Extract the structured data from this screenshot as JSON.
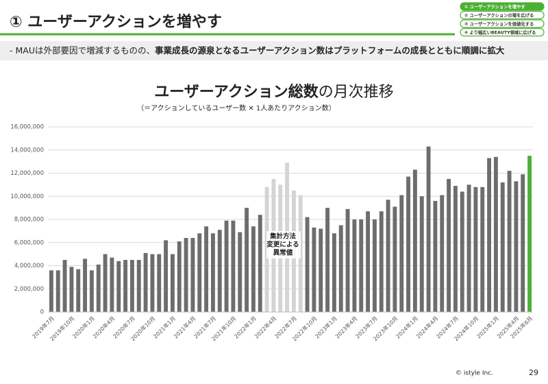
{
  "header": {
    "title": "① ユーザーアクションを増やす",
    "nav": [
      "① ユーザーアクションを増やす",
      "② ユーザーアクションの場を広げる",
      "③ ユーザーアクションを価値化する",
      "④ より幅広いBEAUTY領域に広げる"
    ]
  },
  "subheading": {
    "prefix": "- MAUは外部要因で増減するものの、",
    "bold": "事業成長の源泉となるユーザーアクション数はプラットフォームの成長とともに順調に拡大"
  },
  "chart_data": {
    "type": "bar",
    "title": "ユーザーアクション総数",
    "title_rest": "の月次推移",
    "subtitle": "（＝アクションしているユーザー数 ✕ 1人あたりアクション数）",
    "annotation": [
      "集計方法",
      "変更による",
      "異常値"
    ],
    "categories": [
      "2019年7月",
      null,
      null,
      "2019年10月",
      null,
      null,
      "2020年1月",
      null,
      null,
      "2020年4月",
      null,
      null,
      "2020年7月",
      null,
      null,
      "2020年10月",
      null,
      null,
      "2021年1月",
      null,
      null,
      "2021年4月",
      null,
      null,
      "2021年7月",
      null,
      null,
      "2021年10月",
      null,
      null,
      "2022年1月",
      null,
      null,
      "2022年4月",
      null,
      null,
      "2022年7月",
      null,
      null,
      "2022年10月",
      null,
      null,
      "2023年1月",
      null,
      null,
      "2023年4月",
      null,
      null,
      "2023年7月",
      null,
      null,
      "2023年10月",
      null,
      null,
      "2024年1月",
      null,
      null,
      "2024年4月",
      null,
      null,
      "2024年7月",
      null,
      null,
      "2024年10月",
      null,
      null,
      "2025年1月",
      null,
      null,
      "2025年4月",
      null,
      "2025年6月"
    ],
    "values": [
      3600000,
      3600000,
      4500000,
      3900000,
      3700000,
      4600000,
      3600000,
      4100000,
      5000000,
      4700000,
      4400000,
      4500000,
      4500000,
      4500000,
      5100000,
      5000000,
      5000000,
      6200000,
      5000000,
      6100000,
      6400000,
      6400000,
      6800000,
      7400000,
      6800000,
      7100000,
      7900000,
      7900000,
      6900000,
      9000000,
      7400000,
      8400000,
      10800000,
      11500000,
      11000000,
      12900000,
      10500000,
      10100000,
      8200000,
      7300000,
      7200000,
      9000000,
      6800000,
      7500000,
      8900000,
      8000000,
      8000000,
      8700000,
      8000000,
      8700000,
      9700000,
      9100000,
      10100000,
      11700000,
      12300000,
      10000000,
      14300000,
      9600000,
      10100000,
      11500000,
      10900000,
      10400000,
      11000000,
      10800000,
      10800000,
      13300000,
      13400000,
      11200000,
      12200000,
      11300000,
      11900000,
      13500000
    ],
    "colors": [
      "#6d6d6d",
      "#6d6d6d",
      "#6d6d6d",
      "#6d6d6d",
      "#6d6d6d",
      "#6d6d6d",
      "#6d6d6d",
      "#6d6d6d",
      "#6d6d6d",
      "#6d6d6d",
      "#6d6d6d",
      "#6d6d6d",
      "#6d6d6d",
      "#6d6d6d",
      "#6d6d6d",
      "#6d6d6d",
      "#6d6d6d",
      "#6d6d6d",
      "#6d6d6d",
      "#6d6d6d",
      "#6d6d6d",
      "#6d6d6d",
      "#6d6d6d",
      "#6d6d6d",
      "#6d6d6d",
      "#6d6d6d",
      "#6d6d6d",
      "#6d6d6d",
      "#6d6d6d",
      "#6d6d6d",
      "#6d6d6d",
      "#6d6d6d",
      "#d4d4d4",
      "#d4d4d4",
      "#d4d4d4",
      "#d4d4d4",
      "#d4d4d4",
      "#d4d4d4",
      "#6d6d6d",
      "#6d6d6d",
      "#6d6d6d",
      "#6d6d6d",
      "#6d6d6d",
      "#6d6d6d",
      "#6d6d6d",
      "#6d6d6d",
      "#6d6d6d",
      "#6d6d6d",
      "#6d6d6d",
      "#6d6d6d",
      "#6d6d6d",
      "#6d6d6d",
      "#6d6d6d",
      "#6d6d6d",
      "#6d6d6d",
      "#6d6d6d",
      "#6d6d6d",
      "#6d6d6d",
      "#6d6d6d",
      "#6d6d6d",
      "#6d6d6d",
      "#6d6d6d",
      "#6d6d6d",
      "#6d6d6d",
      "#6d6d6d",
      "#6d6d6d",
      "#6d6d6d",
      "#6d6d6d",
      "#6d6d6d",
      "#6d6d6d",
      "#6d6d6d",
      "#4cb034"
    ],
    "ylim": [
      0,
      16000000
    ],
    "yticks": [
      0,
      {
        "value": 2000000,
        "label": "2,000,000"
      },
      {
        "value": 4000000,
        "label": "4,000,000"
      },
      {
        "value": 6000000,
        "label": "6,000,000"
      },
      {
        "value": 8000000,
        "label": "8,000,000"
      },
      {
        "value": 10000000,
        "label": "10,000,000"
      },
      {
        "value": 12000000,
        "label": "12,000,000"
      },
      {
        "value": 14000000,
        "label": "14,000,000"
      },
      {
        "value": 16000000,
        "label": "16,000,000"
      }
    ],
    "grid": true
  },
  "footer": {
    "copyright": "© istyle Inc.",
    "page": "29"
  }
}
